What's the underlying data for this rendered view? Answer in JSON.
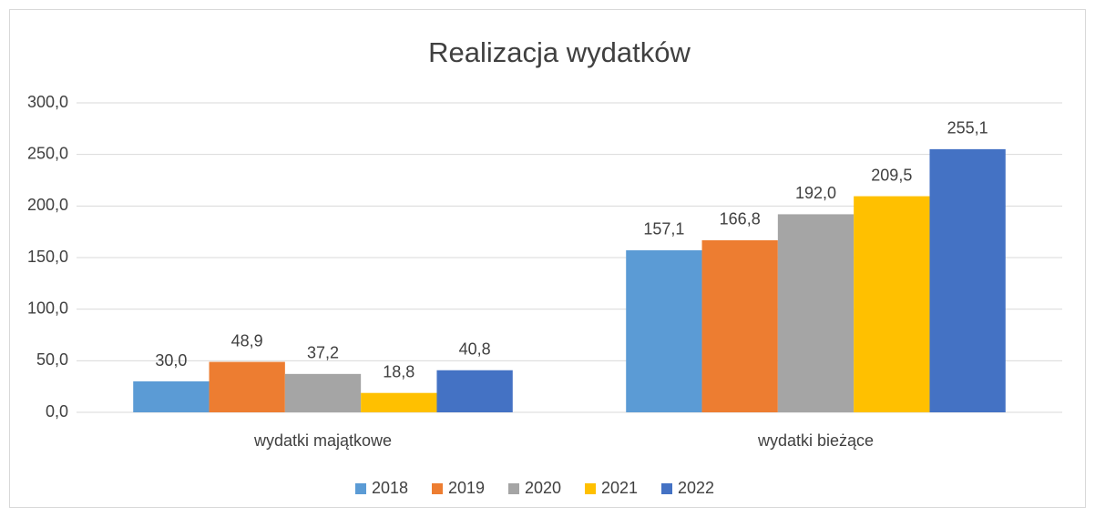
{
  "chart_data": {
    "type": "bar",
    "title": "Realizacja wydatków",
    "categories": [
      "wydatki majątkowe",
      "wydatki bieżące"
    ],
    "series": [
      {
        "name": "2018",
        "color": "#5b9bd5",
        "values": [
          30.0,
          157.1
        ],
        "value_labels": [
          "30,0",
          "157,1"
        ]
      },
      {
        "name": "2019",
        "color": "#ed7d31",
        "values": [
          48.9,
          166.8
        ],
        "value_labels": [
          "48,9",
          "166,8"
        ]
      },
      {
        "name": "2020",
        "color": "#a5a5a5",
        "values": [
          37.2,
          192.0
        ],
        "value_labels": [
          "37,2",
          "192,0"
        ]
      },
      {
        "name": "2021",
        "color": "#ffc000",
        "values": [
          18.8,
          209.5
        ],
        "value_labels": [
          "18,8",
          "209,5"
        ]
      },
      {
        "name": "2022",
        "color": "#4472c4",
        "values": [
          40.8,
          255.1
        ],
        "value_labels": [
          "40,8",
          "255,1"
        ]
      }
    ],
    "ylim": [
      0,
      300
    ],
    "yticks": [
      {
        "value": 0,
        "label": "0,0"
      },
      {
        "value": 50,
        "label": "50,0"
      },
      {
        "value": 100,
        "label": "100,0"
      },
      {
        "value": 150,
        "label": "150,0"
      },
      {
        "value": 200,
        "label": "200,0"
      },
      {
        "value": 250,
        "label": "250,0"
      },
      {
        "value": 300,
        "label": "300,0"
      }
    ],
    "grid": true,
    "legend": "bottom"
  }
}
